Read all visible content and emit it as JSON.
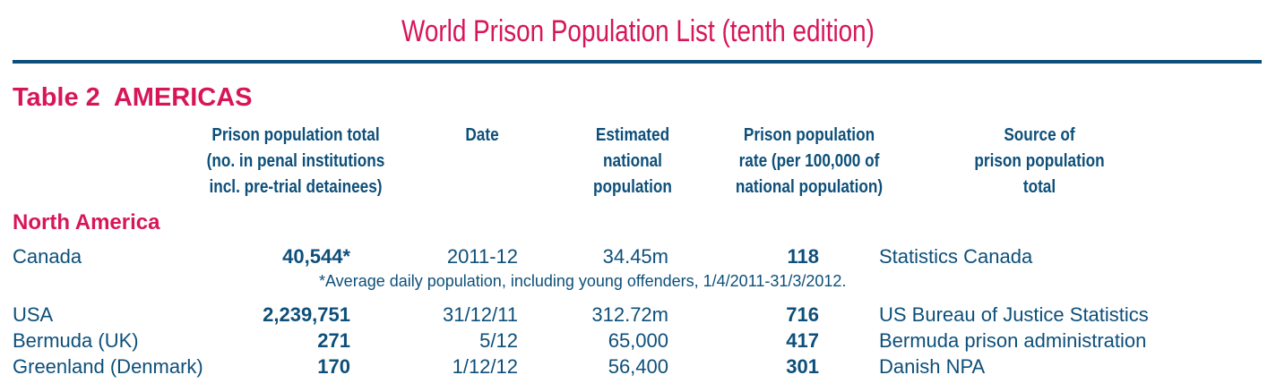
{
  "document": {
    "title": "World Prison Population List (tenth edition)",
    "table_heading": "Table 2  AMERICAS"
  },
  "columns": {
    "total": [
      "Prison population total",
      "(no. in penal institutions",
      "incl. pre-trial detainees)"
    ],
    "date": [
      "Date"
    ],
    "population": [
      "Estimated",
      "national",
      "population"
    ],
    "rate": [
      "Prison population",
      "rate (per 100,000 of",
      "national population)"
    ],
    "source": [
      "Source of",
      "prison population",
      "total"
    ]
  },
  "region": "North America",
  "rows": [
    {
      "country": "Canada",
      "total": "40,544*",
      "date": "2011-12",
      "population": "34.45m",
      "rate": "118",
      "source": "Statistics Canada"
    },
    {
      "country": "USA",
      "total": "2,239,751",
      "date": "31/12/11",
      "population": "312.72m",
      "rate": "716",
      "source": "US Bureau of Justice Statistics"
    },
    {
      "country": "Bermuda (UK)",
      "total": "271",
      "date": "5/12",
      "population": "65,000",
      "rate": "417",
      "source": "Bermuda prison administration"
    },
    {
      "country": "Greenland (Denmark)",
      "total": "170",
      "date": "1/12/12",
      "population": "56,400",
      "rate": "301",
      "source": "Danish NPA"
    }
  ],
  "notes": {
    "canada": "*Average daily population, including young offenders, 1/4/2011-31/3/2012."
  },
  "colors": {
    "title": "#d7165a",
    "text": "#0d4f7a",
    "rule": "#0d4f7a"
  }
}
